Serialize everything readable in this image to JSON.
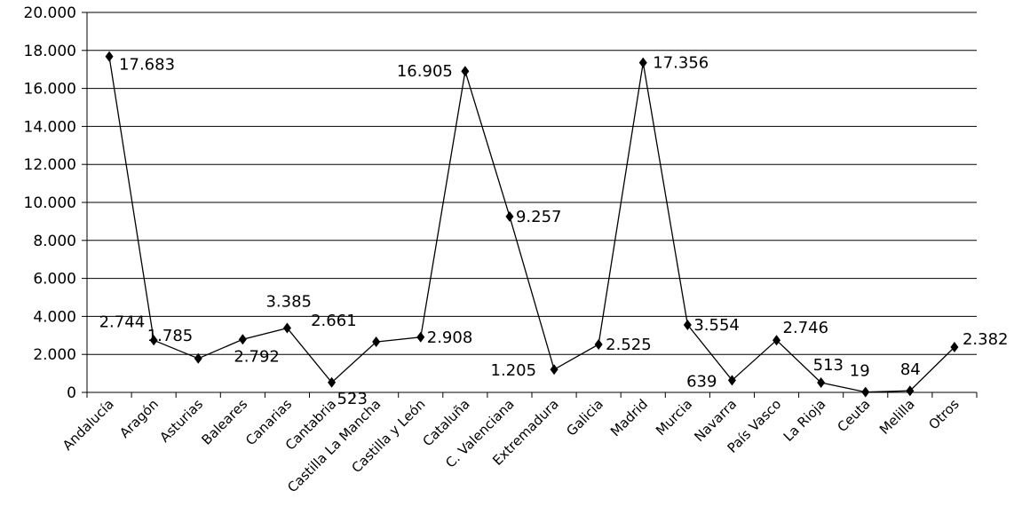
{
  "chart_data": {
    "type": "line",
    "categories": [
      "Andalucía",
      "Aragón",
      "Asturias",
      "Baleares",
      "Canarias",
      "Cantabria",
      "Castilla La Mancha",
      "Castilla y León",
      "Cataluña",
      "C. Valenciana",
      "Extremadura",
      "Galicia",
      "Madrid",
      "Murcia",
      "Navarra",
      "País Vasco",
      "La Rioja",
      "Ceuta",
      "Melilla",
      "Otros"
    ],
    "values": [
      17683,
      2744,
      1785,
      2792,
      3385,
      523,
      2661,
      2908,
      16905,
      9257,
      1205,
      2525,
      17356,
      3554,
      639,
      2746,
      513,
      19,
      84,
      2382
    ],
    "data_labels": [
      "17.683",
      "2.744",
      "1.785",
      "2.792",
      "3.385",
      "523",
      "2.661",
      "2.908",
      "16.905",
      "9.257",
      "1.205",
      "2.525",
      "17.356",
      "3.554",
      "639",
      "2.746",
      "513",
      "19",
      "84",
      "2.382"
    ],
    "yticks": [
      "0",
      "2.000",
      "4.000",
      "6.000",
      "8.000",
      "10.000",
      "12.000",
      "14.000",
      "16.000",
      "18.000",
      "20.000"
    ],
    "ylim": [
      0,
      20000
    ],
    "grid": true,
    "marker": "diamond",
    "line_color": "#000000"
  }
}
